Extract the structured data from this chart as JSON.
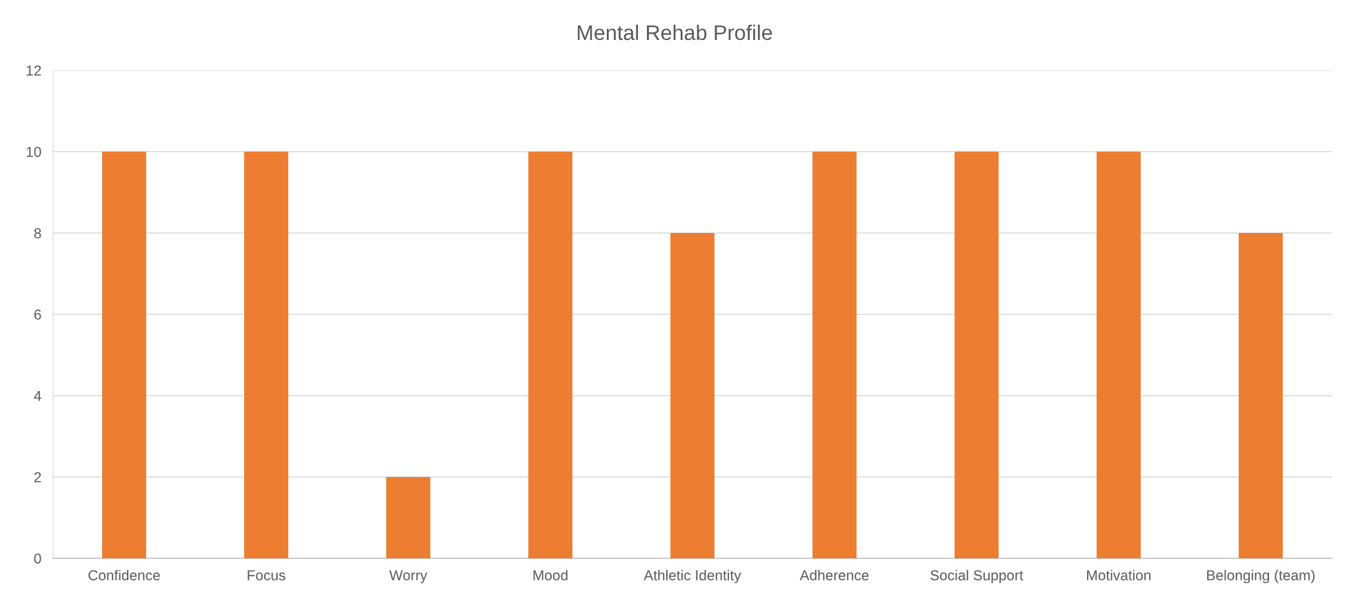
{
  "chart_data": {
    "type": "bar",
    "title": "Mental Rehab Profile",
    "categories": [
      "Confidence",
      "Focus",
      "Worry",
      "Mood",
      "Athletic Identity",
      "Adherence",
      "Social Support",
      "Motivation",
      "Belonging (team)"
    ],
    "values": [
      10,
      10,
      2,
      10,
      8,
      10,
      10,
      10,
      8
    ],
    "color": "#ed7d31",
    "ylim": [
      0,
      12
    ],
    "yticks": [
      0,
      2,
      4,
      6,
      8,
      10,
      12
    ],
    "grid": "y",
    "legend": false
  }
}
